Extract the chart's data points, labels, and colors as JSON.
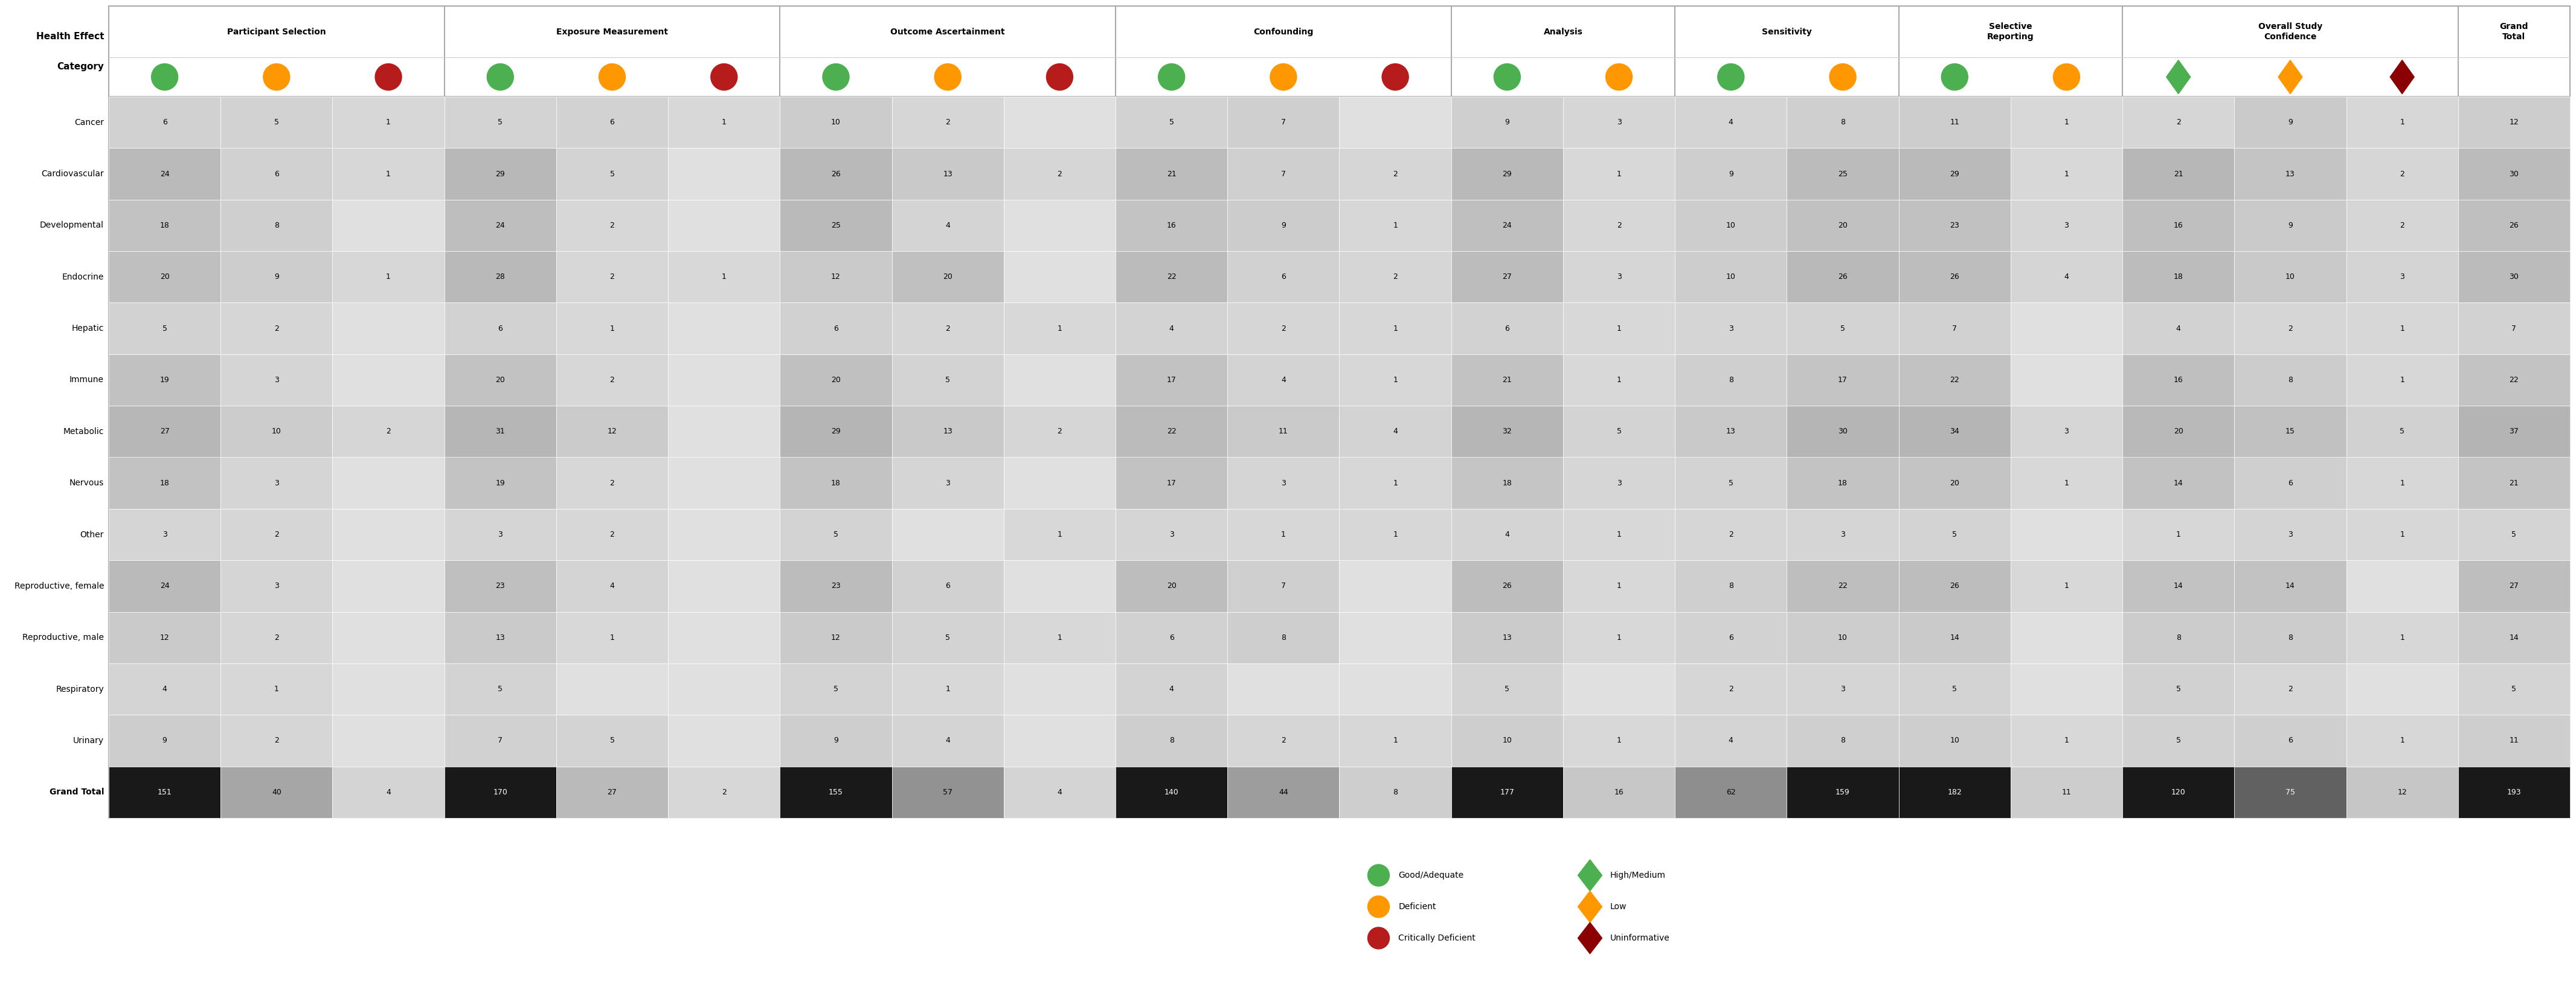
{
  "row_labels": [
    "Cancer",
    "Cardiovascular",
    "Developmental",
    "Endocrine",
    "Hepatic",
    "Immune",
    "Metabolic",
    "Nervous",
    "Other",
    "Reproductive, female",
    "Reproductive, male",
    "Respiratory",
    "Urinary",
    "Grand Total"
  ],
  "col_groups_info": [
    {
      "name": "Participant Selection",
      "n": 3,
      "subcol_types": [
        "G",
        "O",
        "R"
      ]
    },
    {
      "name": "Exposure Measurement",
      "n": 3,
      "subcol_types": [
        "G",
        "O",
        "R"
      ]
    },
    {
      "name": "Outcome Ascertainment",
      "n": 3,
      "subcol_types": [
        "G",
        "O",
        "R"
      ]
    },
    {
      "name": "Confounding",
      "n": 3,
      "subcol_types": [
        "G",
        "O",
        "R"
      ]
    },
    {
      "name": "Analysis",
      "n": 2,
      "subcol_types": [
        "G",
        "O"
      ]
    },
    {
      "name": "Sensitivity",
      "n": 2,
      "subcol_types": [
        "G",
        "O"
      ]
    },
    {
      "name": "Selective\nReporting",
      "n": 2,
      "subcol_types": [
        "G",
        "O"
      ]
    },
    {
      "name": "Overall Study\nConfidence",
      "n": 3,
      "subcol_types": [
        "D",
        "L",
        "U"
      ]
    },
    {
      "name": "Grand\nTotal",
      "n": 1,
      "subcol_types": [
        ""
      ]
    }
  ],
  "data": [
    [
      6,
      5,
      1,
      5,
      6,
      1,
      10,
      2,
      null,
      5,
      7,
      null,
      9,
      3,
      4,
      8,
      11,
      1,
      2,
      9,
      1,
      12
    ],
    [
      24,
      6,
      1,
      29,
      5,
      null,
      26,
      13,
      2,
      21,
      7,
      2,
      29,
      1,
      9,
      25,
      29,
      1,
      21,
      13,
      2,
      30
    ],
    [
      18,
      8,
      null,
      24,
      2,
      null,
      25,
      4,
      null,
      16,
      9,
      1,
      24,
      2,
      10,
      20,
      23,
      3,
      16,
      9,
      2,
      26
    ],
    [
      20,
      9,
      1,
      28,
      2,
      1,
      12,
      20,
      null,
      22,
      6,
      2,
      27,
      3,
      10,
      26,
      26,
      4,
      18,
      10,
      3,
      30
    ],
    [
      5,
      2,
      null,
      6,
      1,
      null,
      6,
      2,
      1,
      4,
      2,
      1,
      6,
      1,
      3,
      5,
      7,
      null,
      4,
      2,
      1,
      7
    ],
    [
      19,
      3,
      null,
      20,
      2,
      null,
      20,
      5,
      null,
      17,
      4,
      1,
      21,
      1,
      8,
      17,
      22,
      null,
      16,
      8,
      1,
      22
    ],
    [
      27,
      10,
      2,
      31,
      12,
      null,
      29,
      13,
      2,
      22,
      11,
      4,
      32,
      5,
      13,
      30,
      34,
      3,
      20,
      15,
      5,
      37
    ],
    [
      18,
      3,
      null,
      19,
      2,
      null,
      18,
      3,
      null,
      17,
      3,
      1,
      18,
      3,
      5,
      18,
      20,
      1,
      14,
      6,
      1,
      21
    ],
    [
      3,
      2,
      null,
      3,
      2,
      null,
      5,
      null,
      1,
      3,
      1,
      1,
      4,
      1,
      2,
      3,
      5,
      null,
      1,
      3,
      1,
      5
    ],
    [
      24,
      3,
      null,
      23,
      4,
      null,
      23,
      6,
      null,
      20,
      7,
      null,
      26,
      1,
      8,
      22,
      26,
      1,
      14,
      14,
      null,
      27
    ],
    [
      12,
      2,
      null,
      13,
      1,
      null,
      12,
      5,
      1,
      6,
      8,
      null,
      13,
      1,
      6,
      10,
      14,
      null,
      8,
      8,
      1,
      14
    ],
    [
      4,
      1,
      null,
      5,
      null,
      null,
      5,
      1,
      null,
      4,
      null,
      null,
      5,
      null,
      2,
      3,
      5,
      null,
      5,
      2,
      null,
      5
    ],
    [
      9,
      2,
      null,
      7,
      5,
      null,
      9,
      4,
      null,
      8,
      2,
      1,
      10,
      1,
      4,
      8,
      10,
      1,
      5,
      6,
      1,
      11
    ],
    [
      151,
      40,
      4,
      170,
      27,
      2,
      155,
      57,
      4,
      140,
      44,
      8,
      177,
      16,
      62,
      159,
      182,
      11,
      120,
      75,
      12,
      193
    ]
  ],
  "green_color": "#4CAF50",
  "orange_color": "#FF9800",
  "red_color": "#B71C1C",
  "diamond_green": "#4CAF50",
  "diamond_orange": "#FF9800",
  "diamond_red": "#8B0000"
}
